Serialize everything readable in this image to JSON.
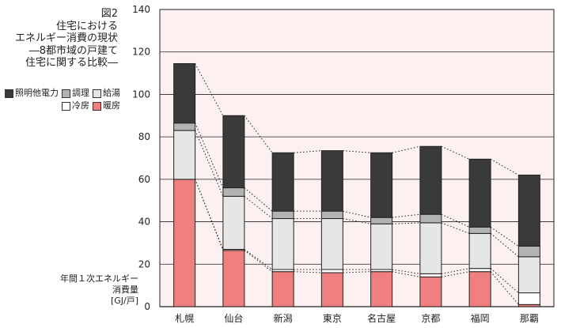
{
  "chart_data": {
    "type": "bar",
    "stacked": true,
    "title_lines": [
      "図2",
      "住宅における",
      "エネルギー消費の現状",
      "―8都市域の戸建て",
      "住宅に関する比較―"
    ],
    "ylabel_lines": [
      "年間１次エネルギー",
      "消費量",
      "[GJ/戸]"
    ],
    "ylim": [
      0,
      140
    ],
    "yticks": [
      "0",
      "20",
      "40",
      "60",
      "80",
      "100",
      "120",
      "140"
    ],
    "grid": true,
    "legend_position": "left",
    "categories": [
      "札幌",
      "仙台",
      "新潟",
      "東京",
      "名古屋",
      "京都",
      "福岡",
      "那覇"
    ],
    "series": [
      {
        "name": "暖房",
        "color": "#f08080",
        "values": [
          60,
          26.5,
          16.5,
          16,
          16.5,
          14,
          16.5,
          1
        ]
      },
      {
        "name": "冷房",
        "color": "#ffffff",
        "values": [
          0,
          0.5,
          1,
          1.5,
          1,
          1.5,
          1.5,
          5.5
        ]
      },
      {
        "name": "給湯",
        "color": "#e6e6e6",
        "values": [
          23,
          25,
          24,
          24,
          21.5,
          24,
          16.5,
          17
        ]
      },
      {
        "name": "調理",
        "color": "#b3b3b3",
        "values": [
          3.5,
          4,
          3.5,
          3.5,
          3,
          4,
          3,
          5
        ]
      },
      {
        "name": "照明他電力",
        "color": "#3a3a3a",
        "values": [
          28,
          34,
          27.5,
          28.5,
          30.5,
          32,
          32,
          33.5
        ]
      }
    ],
    "legend_rows": [
      [
        "照明他電力",
        "調理",
        "給湯"
      ],
      [
        "冷房",
        "暖房"
      ]
    ],
    "colors": {
      "plot_background": "#fdf0f0",
      "grid": "#222222"
    }
  }
}
